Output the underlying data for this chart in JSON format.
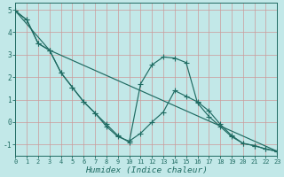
{
  "xlabel": "Humidex (Indice chaleur)",
  "xlim": [
    0,
    23
  ],
  "ylim": [
    -1.5,
    5.3
  ],
  "yticks": [
    -1,
    0,
    1,
    2,
    3,
    4,
    5
  ],
  "xticks": [
    0,
    1,
    2,
    3,
    4,
    5,
    6,
    7,
    8,
    9,
    10,
    11,
    12,
    13,
    14,
    15,
    16,
    17,
    18,
    19,
    20,
    21,
    22,
    23
  ],
  "background_color": "#c2e8e8",
  "grid_color": "#cc9999",
  "line_color": "#1f6b62",
  "line1_x": [
    0,
    3,
    23
  ],
  "line1_y": [
    4.95,
    3.2,
    -1.3
  ],
  "line2_x": [
    0,
    1,
    2,
    3,
    4,
    5,
    6,
    7,
    8,
    9,
    10,
    11,
    12,
    13,
    14,
    15,
    16,
    17,
    18,
    19,
    20,
    21,
    22,
    23
  ],
  "line2_y": [
    4.95,
    4.55,
    3.5,
    3.2,
    2.2,
    1.55,
    0.9,
    0.4,
    -0.2,
    -0.65,
    -0.85,
    -0.5,
    0.0,
    0.45,
    1.4,
    1.15,
    0.9,
    0.5,
    -0.1,
    -0.6,
    -0.95,
    -1.05,
    -1.2,
    -1.3
  ],
  "line3_x": [
    0,
    1,
    2,
    3,
    4,
    5,
    6,
    7,
    8,
    9,
    10,
    11,
    12,
    13,
    14,
    15,
    16,
    17,
    18,
    19,
    20,
    21,
    22,
    23
  ],
  "line3_y": [
    4.95,
    4.55,
    3.5,
    3.2,
    2.2,
    1.55,
    0.9,
    0.4,
    -0.1,
    -0.6,
    -0.9,
    1.7,
    2.55,
    2.9,
    2.85,
    2.65,
    0.85,
    0.25,
    -0.2,
    -0.65,
    -0.95,
    -1.05,
    -1.2,
    -1.3
  ],
  "marker": "+",
  "markersize": 4,
  "linewidth": 0.85
}
